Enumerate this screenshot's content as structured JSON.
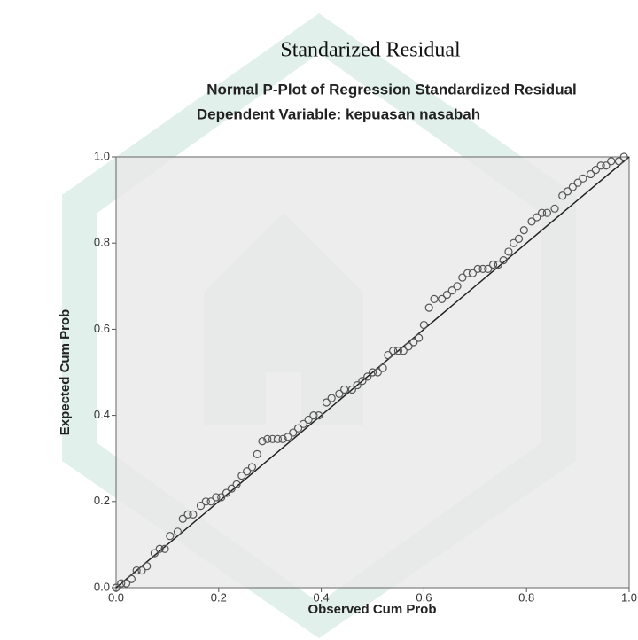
{
  "heading": "Standarized Residual",
  "chart_data": {
    "type": "scatter",
    "title": "Normal P-Plot of Regression Standardized Residual",
    "subtitle": "Dependent Variable: kepuasan nasabah",
    "x_label": "Observed Cum Prob",
    "y_label": "Expected Cum Prob",
    "xlim": [
      0,
      1
    ],
    "ylim": [
      0,
      1
    ],
    "xticks": [
      {
        "value": 0,
        "label": "0.0"
      },
      0.2,
      0.4,
      0.6,
      0.8,
      {
        "value": 1,
        "label": "1.0"
      }
    ],
    "yticks": [
      {
        "value": 0,
        "label": "0.0"
      },
      0.2,
      0.4,
      0.6,
      0.8,
      {
        "value": 1,
        "label": "1.0"
      }
    ],
    "reference_line": true,
    "color": "#555555",
    "x": [
      0.0,
      0.01,
      0.02,
      0.03,
      0.04,
      0.05,
      0.06,
      0.075,
      0.085,
      0.095,
      0.105,
      0.12,
      0.13,
      0.14,
      0.15,
      0.165,
      0.175,
      0.185,
      0.195,
      0.205,
      0.215,
      0.225,
      0.235,
      0.245,
      0.255,
      0.265,
      0.275,
      0.285,
      0.295,
      0.305,
      0.315,
      0.325,
      0.335,
      0.345,
      0.355,
      0.365,
      0.375,
      0.385,
      0.395,
      0.41,
      0.42,
      0.435,
      0.445,
      0.46,
      0.47,
      0.48,
      0.49,
      0.5,
      0.51,
      0.52,
      0.53,
      0.54,
      0.55,
      0.56,
      0.57,
      0.58,
      0.59,
      0.6,
      0.61,
      0.62,
      0.635,
      0.645,
      0.655,
      0.665,
      0.675,
      0.685,
      0.695,
      0.705,
      0.715,
      0.725,
      0.735,
      0.745,
      0.755,
      0.765,
      0.775,
      0.785,
      0.795,
      0.81,
      0.82,
      0.83,
      0.84,
      0.855,
      0.87,
      0.88,
      0.89,
      0.9,
      0.91,
      0.925,
      0.935,
      0.945,
      0.955,
      0.965,
      0.98,
      0.99
    ],
    "y": [
      0.0,
      0.01,
      0.01,
      0.02,
      0.04,
      0.04,
      0.05,
      0.08,
      0.09,
      0.09,
      0.12,
      0.13,
      0.16,
      0.17,
      0.17,
      0.19,
      0.2,
      0.2,
      0.21,
      0.21,
      0.22,
      0.23,
      0.24,
      0.26,
      0.27,
      0.28,
      0.31,
      0.34,
      0.345,
      0.345,
      0.345,
      0.345,
      0.35,
      0.36,
      0.37,
      0.38,
      0.39,
      0.4,
      0.4,
      0.43,
      0.44,
      0.45,
      0.46,
      0.46,
      0.47,
      0.48,
      0.49,
      0.5,
      0.5,
      0.51,
      0.54,
      0.55,
      0.55,
      0.55,
      0.56,
      0.57,
      0.58,
      0.61,
      0.65,
      0.67,
      0.67,
      0.68,
      0.69,
      0.7,
      0.72,
      0.73,
      0.73,
      0.74,
      0.74,
      0.74,
      0.75,
      0.75,
      0.76,
      0.78,
      0.8,
      0.81,
      0.83,
      0.85,
      0.86,
      0.87,
      0.87,
      0.88,
      0.91,
      0.92,
      0.93,
      0.94,
      0.95,
      0.96,
      0.97,
      0.98,
      0.98,
      0.99,
      0.99,
      1.0
    ]
  }
}
